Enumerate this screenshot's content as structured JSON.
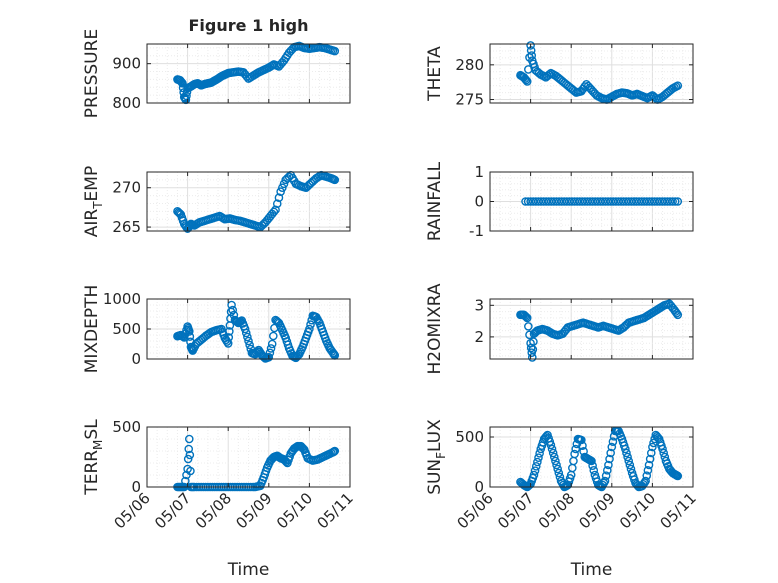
{
  "title": "Figure 1 high",
  "marker_color": "#0072bd",
  "chart_data": [
    {
      "type": "scatter",
      "ylabel": "PRESSURE",
      "xlabel": "",
      "xlim": [
        "05/06",
        "05/11"
      ],
      "ylim": [
        800,
        950
      ],
      "yticks": [
        800,
        900
      ],
      "xticks": [
        "05/06",
        "05/07",
        "05/08",
        "05/09",
        "05/10",
        "05/11"
      ],
      "grid": true,
      "series": [
        {
          "x": [
            "05/06 18:00",
            "05/06 19:30",
            "05/06 21:00",
            "05/06 22:00",
            "05/06 23:00",
            "05/07 00:00",
            "05/07 02:00",
            "05/07 04:00",
            "05/07 06:00",
            "05/07 08:00",
            "05/07 10:00",
            "05/07 12:00",
            "05/07 14:00",
            "05/07 16:00",
            "05/07 18:00",
            "05/07 20:00",
            "05/07 22:00",
            "05/08 00:00",
            "05/08 03:00",
            "05/08 06:00",
            "05/08 09:00",
            "05/08 12:00",
            "05/08 15:00",
            "05/08 18:00",
            "05/08 21:00",
            "05/09 00:00",
            "05/09 03:00",
            "05/09 06:00",
            "05/09 09:00",
            "05/09 12:00",
            "05/09 15:00",
            "05/09 18:00",
            "05/09 21:00",
            "05/10 00:00",
            "05/10 03:00",
            "05/10 06:00",
            "05/10 09:00",
            "05/10 12:00",
            "05/10 15:00"
          ],
          "y": [
            860,
            858,
            850,
            815,
            808,
            838,
            842,
            848,
            850,
            845,
            848,
            850,
            852,
            857,
            862,
            868,
            872,
            876,
            878,
            880,
            878,
            862,
            870,
            878,
            884,
            890,
            898,
            893,
            908,
            928,
            942,
            945,
            940,
            938,
            940,
            942,
            940,
            936,
            932
          ]
        }
      ]
    },
    {
      "type": "scatter",
      "ylabel": "THETA",
      "xlabel": "",
      "xlim": [
        "05/06",
        "05/11"
      ],
      "ylim": [
        274.5,
        283
      ],
      "yticks": [
        275,
        280
      ],
      "xticks": [
        "05/06",
        "05/07",
        "05/08",
        "05/09",
        "05/10",
        "05/11"
      ],
      "grid": true,
      "series": [
        {
          "x": [
            "05/06 18:00",
            "05/06 20:00",
            "05/06 22:00",
            "05/07 00:00",
            "05/07 01:00",
            "05/07 03:00",
            "05/07 06:00",
            "05/07 09:00",
            "05/07 12:00",
            "05/07 15:00",
            "05/07 18:00",
            "05/07 21:00",
            "05/08 00:00",
            "05/08 03:00",
            "05/08 06:00",
            "05/08 09:00",
            "05/08 12:00",
            "05/08 15:00",
            "05/08 18:00",
            "05/08 21:00",
            "05/09 00:00",
            "05/09 03:00",
            "05/09 06:00",
            "05/09 09:00",
            "05/09 12:00",
            "05/09 15:00",
            "05/09 18:00",
            "05/09 21:00",
            "05/10 00:00",
            "05/10 03:00",
            "05/10 06:00",
            "05/10 09:00",
            "05/10 12:00",
            "05/10 15:00"
          ],
          "y": [
            278.5,
            278.2,
            277.6,
            282.8,
            280.6,
            279.2,
            278.6,
            278.2,
            278.8,
            278.4,
            277.8,
            277.2,
            276.6,
            276.0,
            276.2,
            277.2,
            276.4,
            275.6,
            275.2,
            275.0,
            275.4,
            275.8,
            276.0,
            275.9,
            275.6,
            275.8,
            275.5,
            275.2,
            275.6,
            275.0,
            275.4,
            276.0,
            276.6,
            277.0
          ]
        }
      ]
    },
    {
      "type": "scatter",
      "ylabel": "AIR_TEMP",
      "xlabel": "",
      "xlim": [
        "05/06",
        "05/11"
      ],
      "ylim": [
        264.5,
        272
      ],
      "yticks": [
        265,
        270
      ],
      "xticks": [
        "05/06",
        "05/07",
        "05/08",
        "05/09",
        "05/10",
        "05/11"
      ],
      "grid": true,
      "series": [
        {
          "x": [
            "05/06 18:00",
            "05/06 20:00",
            "05/06 22:00",
            "05/07 00:00",
            "05/07 02:00",
            "05/07 04:00",
            "05/07 07:00",
            "05/07 10:00",
            "05/07 13:00",
            "05/07 16:00",
            "05/07 19:00",
            "05/07 22:00",
            "05/08 01:00",
            "05/08 04:00",
            "05/08 07:00",
            "05/08 10:00",
            "05/08 13:00",
            "05/08 16:00",
            "05/08 19:00",
            "05/08 22:00",
            "05/09 01:00",
            "05/09 04:00",
            "05/09 07:00",
            "05/09 10:00",
            "05/09 13:00",
            "05/09 16:00",
            "05/09 19:00",
            "05/09 22:00",
            "05/10 01:00",
            "05/10 04:00",
            "05/10 07:00",
            "05/10 10:00",
            "05/10 13:00",
            "05/10 15:00"
          ],
          "y": [
            267.0,
            266.6,
            265.4,
            264.8,
            265.4,
            265.2,
            265.6,
            265.8,
            266.0,
            266.2,
            266.4,
            266.0,
            266.1,
            265.9,
            265.8,
            265.6,
            265.4,
            265.2,
            265.0,
            265.6,
            266.4,
            267.2,
            269.5,
            271.0,
            271.6,
            270.5,
            270.2,
            270.0,
            270.6,
            271.2,
            271.6,
            271.4,
            271.2,
            271.0
          ]
        }
      ]
    },
    {
      "type": "scatter",
      "ylabel": "RAINFALL",
      "xlabel": "",
      "xlim": [
        "05/06",
        "05/11"
      ],
      "ylim": [
        -1,
        1
      ],
      "yticks": [
        -1,
        0,
        1
      ],
      "xticks": [
        "05/06",
        "05/07",
        "05/08",
        "05/09",
        "05/10",
        "05/11"
      ],
      "grid": true,
      "series": [
        {
          "x_range": [
            "05/06 21:00",
            "05/10 15:00"
          ],
          "count": 60,
          "y_constant": 0
        }
      ]
    },
    {
      "type": "scatter",
      "ylabel": "MIXDEPTH",
      "xlabel": "",
      "xlim": [
        "05/06",
        "05/11"
      ],
      "ylim": [
        0,
        1000
      ],
      "yticks": [
        0,
        500,
        1000
      ],
      "xticks": [
        "05/06",
        "05/07",
        "05/08",
        "05/09",
        "05/10",
        "05/11"
      ],
      "grid": true,
      "series": [
        {
          "x": [
            "05/06 18:00",
            "05/06 20:00",
            "05/06 22:00",
            "05/07 00:00",
            "05/07 01:00",
            "05/07 02:00",
            "05/07 03:00",
            "05/07 05:00",
            "05/07 08:00",
            "05/07 11:00",
            "05/07 14:00",
            "05/07 17:00",
            "05/07 20:00",
            "05/07 22:00",
            "05/08 00:00",
            "05/08 01:00",
            "05/08 02:00",
            "05/08 04:00",
            "05/08 06:00",
            "05/08 08:00",
            "05/08 10:00",
            "05/08 12:00",
            "05/08 14:00",
            "05/08 16:00",
            "05/08 18:00",
            "05/08 20:00",
            "05/08 22:00",
            "05/09 00:00",
            "05/09 02:00",
            "05/09 04:00",
            "05/09 06:00",
            "05/09 08:00",
            "05/09 10:00",
            "05/09 12:00",
            "05/09 14:00",
            "05/09 16:00",
            "05/09 18:00",
            "05/09 20:00",
            "05/09 22:00",
            "05/10 00:00",
            "05/10 02:00",
            "05/10 04:00",
            "05/10 06:00",
            "05/10 08:00",
            "05/10 10:00",
            "05/10 12:00",
            "05/10 14:00",
            "05/10 15:00"
          ],
          "y": [
            380,
            400,
            360,
            540,
            460,
            200,
            140,
            250,
            320,
            390,
            450,
            480,
            500,
            350,
            260,
            560,
            900,
            650,
            600,
            640,
            500,
            300,
            100,
            80,
            150,
            60,
            10,
            30,
            250,
            650,
            600,
            480,
            350,
            180,
            50,
            20,
            80,
            200,
            350,
            500,
            720,
            700,
            600,
            450,
            300,
            180,
            100,
            60
          ]
        }
      ]
    },
    {
      "type": "scatter",
      "ylabel": "H2OMIXRA",
      "xlabel": "",
      "xlim": [
        "05/06",
        "05/11"
      ],
      "ylim": [
        1.3,
        3.2
      ],
      "yticks": [
        2,
        3
      ],
      "xticks": [
        "05/06",
        "05/07",
        "05/08",
        "05/09",
        "05/10",
        "05/11"
      ],
      "grid": true,
      "series": [
        {
          "x": [
            "05/06 18:00",
            "05/06 20:00",
            "05/06 22:00",
            "05/07 00:00",
            "05/07 01:00",
            "05/07 02:00",
            "05/07 04:00",
            "05/07 07:00",
            "05/07 10:00",
            "05/07 13:00",
            "05/07 16:00",
            "05/07 19:00",
            "05/07 22:00",
            "05/08 01:00",
            "05/08 04:00",
            "05/08 07:00",
            "05/08 10:00",
            "05/08 13:00",
            "05/08 16:00",
            "05/08 19:00",
            "05/08 22:00",
            "05/09 01:00",
            "05/09 04:00",
            "05/09 07:00",
            "05/09 10:00",
            "05/09 13:00",
            "05/09 16:00",
            "05/09 19:00",
            "05/09 22:00",
            "05/10 01:00",
            "05/10 04:00",
            "05/10 07:00",
            "05/10 10:00",
            "05/10 13:00",
            "05/10 15:00"
          ],
          "y": [
            2.7,
            2.7,
            2.6,
            1.8,
            1.35,
            2.1,
            2.2,
            2.25,
            2.2,
            2.1,
            2.05,
            2.1,
            2.3,
            2.35,
            2.4,
            2.45,
            2.4,
            2.35,
            2.3,
            2.35,
            2.3,
            2.25,
            2.2,
            2.3,
            2.45,
            2.5,
            2.55,
            2.6,
            2.7,
            2.8,
            2.9,
            3.0,
            3.05,
            2.85,
            2.7
          ]
        }
      ]
    },
    {
      "type": "scatter",
      "ylabel": "TERR_MSL",
      "xlabel": "Time",
      "xlim": [
        "05/06",
        "05/11"
      ],
      "ylim": [
        0,
        500
      ],
      "yticks": [
        0,
        500
      ],
      "xticks": [
        "05/06",
        "05/07",
        "05/08",
        "05/09",
        "05/10",
        "05/11"
      ],
      "grid": true,
      "series": [
        {
          "x": [
            "05/06 18:00",
            "05/06 20:00",
            "05/06 22:00",
            "05/07 00:00",
            "05/07 01:00",
            "05/07 02:00",
            "05/07 04:00",
            "05/07 08:00",
            "05/07 12:00",
            "05/07 16:00",
            "05/07 20:00",
            "05/08 00:00",
            "05/08 04:00",
            "05/08 08:00",
            "05/08 12:00",
            "05/08 16:00",
            "05/08 19:00",
            "05/08 21:00",
            "05/08 23:00",
            "05/09 01:00",
            "05/09 03:00",
            "05/09 05:00",
            "05/09 07:00",
            "05/09 09:00",
            "05/09 11:00",
            "05/09 13:00",
            "05/09 15:00",
            "05/09 17:00",
            "05/09 19:00",
            "05/09 21:00",
            "05/09 23:00",
            "05/10 02:00",
            "05/10 05:00",
            "05/10 08:00",
            "05/10 11:00",
            "05/10 14:00",
            "05/10 15:00"
          ],
          "y": [
            0,
            0,
            0,
            150,
            400,
            0,
            0,
            0,
            0,
            0,
            0,
            0,
            0,
            0,
            0,
            0,
            10,
            80,
            160,
            220,
            250,
            260,
            240,
            230,
            200,
            280,
            320,
            340,
            340,
            310,
            240,
            220,
            230,
            250,
            270,
            290,
            300
          ]
        }
      ]
    },
    {
      "type": "scatter",
      "ylabel": "SUN_FLUX",
      "xlabel": "Time",
      "xlim": [
        "05/06",
        "05/11"
      ],
      "ylim": [
        0,
        600
      ],
      "yticks": [
        0,
        500
      ],
      "xticks": [
        "05/06",
        "05/07",
        "05/08",
        "05/09",
        "05/10",
        "05/11"
      ],
      "grid": true,
      "series": [
        {
          "x": [
            "05/06 18:00",
            "05/06 20:00",
            "05/06 22:00",
            "05/07 00:00",
            "05/07 02:00",
            "05/07 04:00",
            "05/07 06:00",
            "05/07 08:00",
            "05/07 10:00",
            "05/07 12:00",
            "05/07 14:00",
            "05/07 16:00",
            "05/07 18:00",
            "05/07 20:00",
            "05/07 22:00",
            "05/08 00:00",
            "05/08 02:00",
            "05/08 04:00",
            "05/08 06:00",
            "05/08 08:00",
            "05/08 10:00",
            "05/08 12:00",
            "05/08 14:00",
            "05/08 16:00",
            "05/08 18:00",
            "05/08 20:00",
            "05/08 22:00",
            "05/09 00:00",
            "05/09 02:00",
            "05/09 04:00",
            "05/09 06:00",
            "05/09 08:00",
            "05/09 10:00",
            "05/09 12:00",
            "05/09 14:00",
            "05/09 16:00",
            "05/09 18:00",
            "05/09 20:00",
            "05/09 22:00",
            "05/10 00:00",
            "05/10 02:00",
            "05/10 04:00",
            "05/10 06:00",
            "05/10 08:00",
            "05/10 10:00",
            "05/10 12:00",
            "05/10 14:00",
            "05/10 15:00"
          ],
          "y": [
            50,
            20,
            0,
            30,
            120,
            250,
            380,
            480,
            520,
            420,
            300,
            180,
            60,
            0,
            20,
            120,
            330,
            480,
            470,
            300,
            280,
            260,
            120,
            20,
            0,
            60,
            220,
            400,
            560,
            560,
            480,
            380,
            260,
            140,
            40,
            0,
            10,
            60,
            220,
            400,
            520,
            480,
            380,
            260,
            180,
            140,
            120,
            110
          ]
        }
      ]
    }
  ]
}
